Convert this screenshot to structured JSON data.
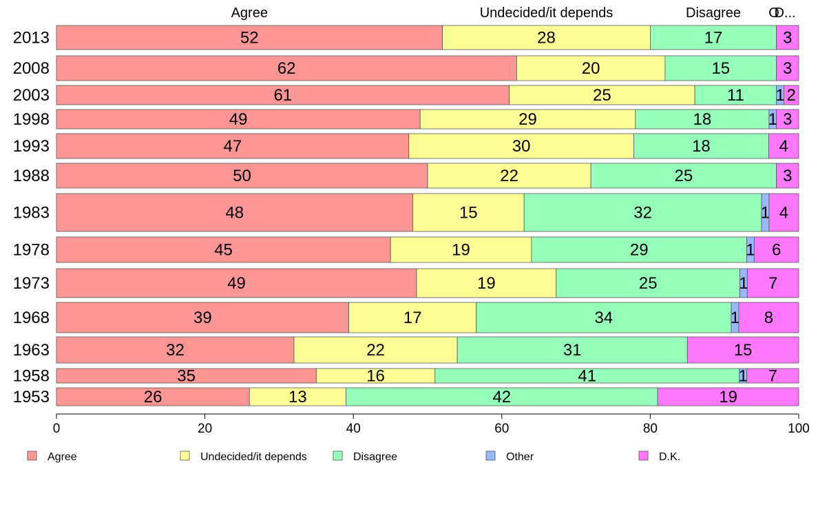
{
  "chart_data": {
    "type": "bar",
    "orientation": "horizontal",
    "stacked": true,
    "categories": [
      "2013",
      "2008",
      "2003",
      "1998",
      "1993",
      "1988",
      "1983",
      "1978",
      "1973",
      "1968",
      "1963",
      "1958",
      "1953"
    ],
    "series": [
      {
        "name": "Agree",
        "color": "#ff9696",
        "values": [
          52,
          62,
          61,
          49,
          47,
          50,
          48,
          45,
          49,
          39,
          32,
          35,
          26
        ]
      },
      {
        "name": "Undecided/it depends",
        "color": "#ffff96",
        "values": [
          28,
          20,
          25,
          29,
          30,
          22,
          15,
          19,
          19,
          17,
          22,
          16,
          13
        ]
      },
      {
        "name": "Disagree",
        "color": "#96ffb9",
        "values": [
          17,
          15,
          11,
          18,
          18,
          25,
          32,
          29,
          25,
          34,
          31,
          41,
          42
        ]
      },
      {
        "name": "Other",
        "color": "#96b9ff",
        "values": [
          0,
          0,
          1,
          1,
          0,
          0,
          1,
          1,
          1,
          1,
          0,
          1,
          0
        ]
      },
      {
        "name": "D.K.",
        "color": "#ff78ff",
        "values": [
          3,
          3,
          2,
          3,
          4,
          3,
          4,
          6,
          7,
          8,
          15,
          7,
          19
        ]
      }
    ],
    "top_labels": [
      "Agree",
      "Undecided/it depends",
      "Disagree",
      "O",
      "D..."
    ],
    "xlim": [
      0,
      100
    ],
    "xticks": [
      "0",
      "20",
      "40",
      "60",
      "80",
      "100"
    ],
    "grid": false,
    "legend_position": "bottom"
  }
}
